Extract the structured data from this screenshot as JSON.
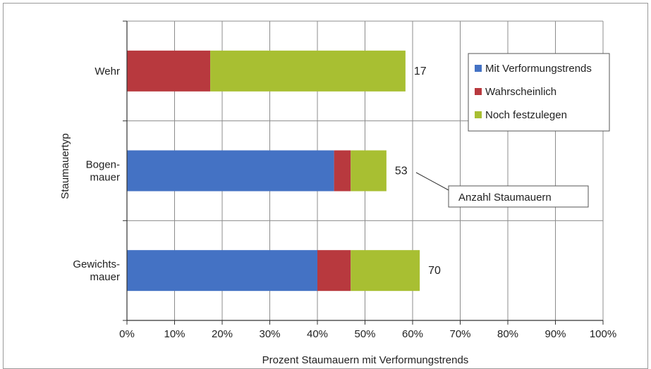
{
  "chart_data": {
    "type": "bar",
    "orientation": "horizontal",
    "stacked": true,
    "title": "",
    "xlabel": "Prozent Staumauern mit Verformungstrends",
    "ylabel": "Staumauertyp",
    "xlim": [
      0,
      100
    ],
    "x_ticks": [
      "0%",
      "10%",
      "20%",
      "30%",
      "40%",
      "50%",
      "60%",
      "70%",
      "80%",
      "90%",
      "100%"
    ],
    "grid": true,
    "legend_position": "top-right",
    "categories": [
      {
        "label_lines": [
          "Wehr"
        ],
        "count": "17"
      },
      {
        "label_lines": [
          "Bogen-",
          "mauer"
        ],
        "count": "53"
      },
      {
        "label_lines": [
          "Gewichts-",
          "mauer"
        ],
        "count": "70"
      }
    ],
    "series": [
      {
        "name": "Mit Verformungstrends",
        "color": "#4472c4",
        "values": [
          0,
          43.5,
          40
        ]
      },
      {
        "name": "Wahrscheinlich",
        "color": "#b8393e",
        "values": [
          17.5,
          3.5,
          7
        ]
      },
      {
        "name": "Noch festzulegen",
        "color": "#a8bf32",
        "values": [
          41,
          7.5,
          14.5
        ]
      }
    ],
    "annotation": "Anzahl Staumauern"
  }
}
